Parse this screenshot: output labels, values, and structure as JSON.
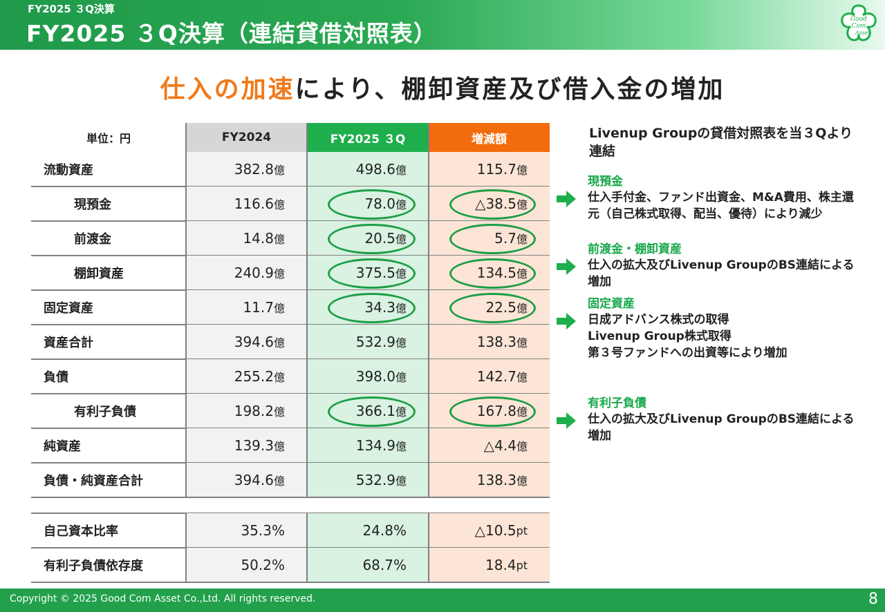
{
  "header": {
    "breadcrumb": "FY2025 ３Q決算",
    "title": "FY2025 ３Q決算（連結貸借対照表）",
    "logo_text": [
      "Good",
      "Com",
      "Asset"
    ]
  },
  "headline": {
    "accent": "仕入の加速",
    "rest": "により、棚卸資産及び借入金の増加"
  },
  "table": {
    "unit_label": "単位：円",
    "columns": [
      "FY2024",
      "FY2025 ３Q",
      "増減額"
    ],
    "rows": [
      {
        "label": "流動資産",
        "indent": false,
        "v": [
          "382.8",
          "498.6",
          "115.7"
        ],
        "u": [
          "億",
          "億",
          "億"
        ]
      },
      {
        "label": "現預金",
        "indent": true,
        "v": [
          "116.6",
          "78.0",
          "△38.5"
        ],
        "u": [
          "億",
          "億",
          "億"
        ]
      },
      {
        "label": "前渡金",
        "indent": true,
        "v": [
          "14.8",
          "20.5",
          "5.7"
        ],
        "u": [
          "億",
          "億",
          "億"
        ]
      },
      {
        "label": "棚卸資産",
        "indent": true,
        "v": [
          "240.9",
          "375.5",
          "134.5"
        ],
        "u": [
          "億",
          "億",
          "億"
        ]
      },
      {
        "label": "固定資産",
        "indent": false,
        "v": [
          "11.7",
          "34.3",
          "22.5"
        ],
        "u": [
          "億",
          "億",
          "億"
        ]
      },
      {
        "label": "資産合計",
        "indent": false,
        "v": [
          "394.6",
          "532.9",
          "138.3"
        ],
        "u": [
          "億",
          "億",
          "億"
        ]
      },
      {
        "label": "負債",
        "indent": false,
        "v": [
          "255.2",
          "398.0",
          "142.7"
        ],
        "u": [
          "億",
          "億",
          "億"
        ]
      },
      {
        "label": "有利子負債",
        "indent": true,
        "v": [
          "198.2",
          "366.1",
          "167.8"
        ],
        "u": [
          "億",
          "億",
          "億"
        ]
      },
      {
        "label": "純資産",
        "indent": false,
        "v": [
          "139.3",
          "134.9",
          "△4.4"
        ],
        "u": [
          "億",
          "億",
          "億"
        ]
      },
      {
        "label": "負債・純資産合計",
        "indent": false,
        "v": [
          "394.6",
          "532.9",
          "138.3"
        ],
        "u": [
          "億",
          "億",
          "億"
        ]
      }
    ],
    "ratios": [
      {
        "label": "自己資本比率",
        "v": [
          "35.3%",
          "24.8%",
          "△10.5"
        ],
        "u": [
          "",
          "",
          "pt"
        ]
      },
      {
        "label": "有利子負債依存度",
        "v": [
          "50.2%",
          "68.7%",
          "18.4"
        ],
        "u": [
          "",
          "",
          "pt"
        ]
      }
    ]
  },
  "panel": {
    "intro": "Livenup Groupの貸借対照表を当３Qより連結",
    "sections": [
      {
        "title": "現預金",
        "body": "仕入手付金、ファンド出資金、M&A費用、株主還元（自己株式取得、配当、優待）により減少"
      },
      {
        "title": "前渡金・棚卸資産",
        "body": "仕入の拡大及びLivenup GroupのBS連結による増加"
      },
      {
        "title": "固定資産",
        "body": "日成アドバンス株式の取得\nLivenup Group株式取得\n第３号ファンドへの出資等により増加"
      },
      {
        "title": "有利子負債",
        "body": "仕入の拡大及びLivenup GroupのBS連結による増加"
      }
    ]
  },
  "footer": {
    "copyright": "Copyright © 2025 Good Com Asset Co.,Ltd. All rights reserved.",
    "page": "8"
  },
  "colors": {
    "brand_green": "#1fae4c",
    "accent_orange": "#f26c0d",
    "headline_accent": "#f07a1a"
  }
}
